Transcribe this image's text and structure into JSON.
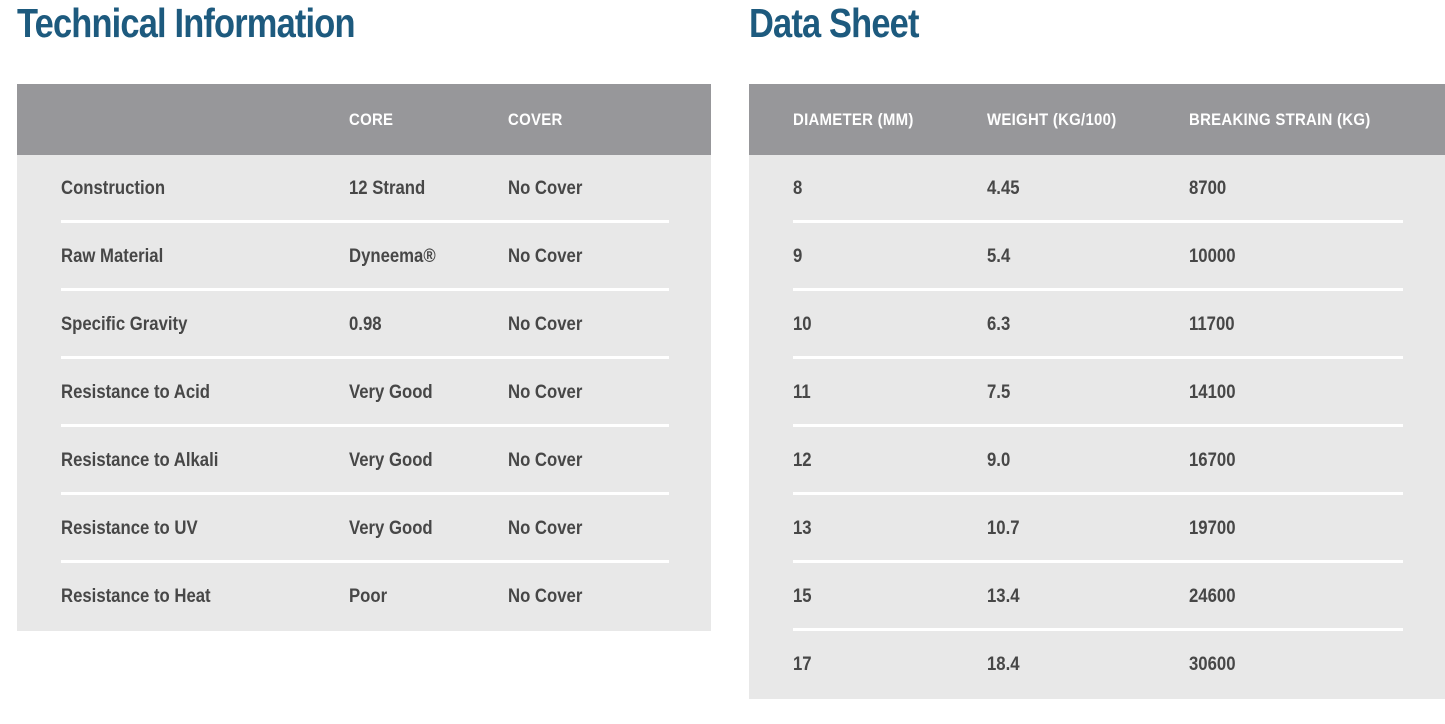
{
  "technical_information": {
    "title": "Technical Information",
    "columns": [
      "",
      "CORE",
      "COVER"
    ],
    "rows": [
      {
        "property": "Construction",
        "core": "12 Strand",
        "cover": "No Cover"
      },
      {
        "property": "Raw Material",
        "core": "Dyneema®",
        "cover": "No Cover"
      },
      {
        "property": "Specific Gravity",
        "core": "0.98",
        "cover": "No Cover"
      },
      {
        "property": "Resistance to Acid",
        "core": "Very Good",
        "cover": "No Cover"
      },
      {
        "property": "Resistance to Alkali",
        "core": "Very Good",
        "cover": "No Cover"
      },
      {
        "property": "Resistance to UV",
        "core": "Very Good",
        "cover": "No Cover"
      },
      {
        "property": "Resistance to Heat",
        "core": "Poor",
        "cover": "No Cover"
      }
    ]
  },
  "data_sheet": {
    "title": "Data Sheet",
    "columns": [
      "DIAMETER (MM)",
      "WEIGHT (KG/100)",
      "BREAKING STRAIN (KG)"
    ],
    "rows": [
      {
        "diameter_mm": "8",
        "weight_kg_100": "4.45",
        "breaking_strain_kg": "8700"
      },
      {
        "diameter_mm": "9",
        "weight_kg_100": "5.4",
        "breaking_strain_kg": "10000"
      },
      {
        "diameter_mm": "10",
        "weight_kg_100": "6.3",
        "breaking_strain_kg": "11700"
      },
      {
        "diameter_mm": "11",
        "weight_kg_100": "7.5",
        "breaking_strain_kg": "14100"
      },
      {
        "diameter_mm": "12",
        "weight_kg_100": "9.0",
        "breaking_strain_kg": "16700"
      },
      {
        "diameter_mm": "13",
        "weight_kg_100": "10.7",
        "breaking_strain_kg": "19700"
      },
      {
        "diameter_mm": "15",
        "weight_kg_100": "13.4",
        "breaking_strain_kg": "24600"
      },
      {
        "diameter_mm": "17",
        "weight_kg_100": "18.4",
        "breaking_strain_kg": "30600"
      }
    ]
  },
  "colors": {
    "title_text": "#1d5a7e",
    "header_bg": "#97979a",
    "header_text": "#ffffff",
    "body_bg": "#e8e8e8",
    "body_text": "#474747",
    "separator": "#ffffff"
  }
}
